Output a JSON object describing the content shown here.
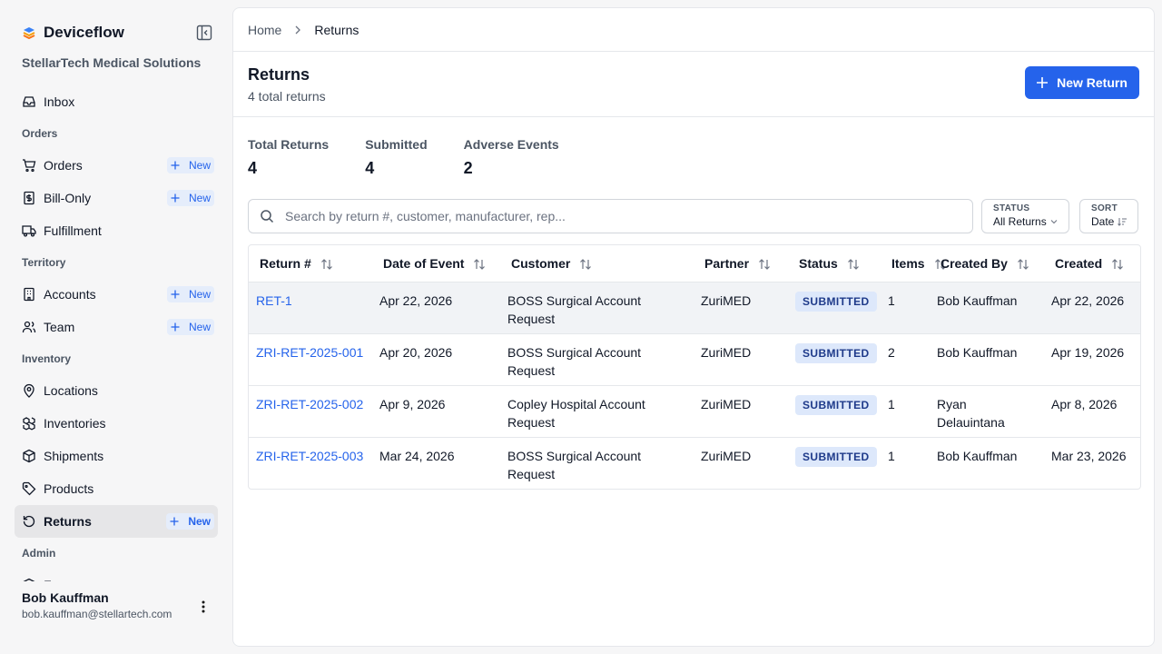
{
  "sidebar": {
    "brand": "Deviceflow",
    "org": "StellarTech Medical Solutions",
    "top": [
      {
        "label": "Inbox",
        "icon": "inbox"
      }
    ],
    "groups": [
      {
        "heading": "Orders",
        "items": [
          {
            "label": "Orders",
            "icon": "cart",
            "badge": "New"
          },
          {
            "label": "Bill-Only",
            "icon": "bill",
            "badge": "New"
          },
          {
            "label": "Fulfillment",
            "icon": "truck"
          }
        ]
      },
      {
        "heading": "Territory",
        "items": [
          {
            "label": "Accounts",
            "icon": "building",
            "badge": "New"
          },
          {
            "label": "Team",
            "icon": "team",
            "badge": "New"
          }
        ]
      },
      {
        "heading": "Inventory",
        "items": [
          {
            "label": "Locations",
            "icon": "pin"
          },
          {
            "label": "Inventories",
            "icon": "boxes"
          },
          {
            "label": "Shipments",
            "icon": "box"
          },
          {
            "label": "Products",
            "icon": "tag"
          },
          {
            "label": "Returns",
            "icon": "return",
            "badge": "New",
            "active": true
          }
        ]
      },
      {
        "heading": "Admin",
        "items": [
          {
            "label": "Forms",
            "icon": "box"
          }
        ]
      }
    ],
    "user": {
      "name": "Bob Kauffman",
      "email": "bob.kauffman@stellartech.com"
    }
  },
  "breadcrumb": [
    "Home",
    "Returns"
  ],
  "header": {
    "title": "Returns",
    "subtitle": "4 total returns",
    "button": "New Return"
  },
  "stats": [
    {
      "label": "Total Returns",
      "value": 4
    },
    {
      "label": "Submitted",
      "value": 4
    },
    {
      "label": "Adverse Events",
      "value": 2
    }
  ],
  "search": {
    "placeholder": "Search by return #, customer, manufacturer, rep..."
  },
  "filters": [
    {
      "label": "STATUS",
      "value": "All Returns"
    },
    {
      "label": "SORT",
      "value": "Date"
    }
  ],
  "table": {
    "columns": [
      "Return #",
      "Date of Event",
      "Customer",
      "Partner",
      "Status",
      "Items",
      "Created By",
      "Created"
    ],
    "rows": [
      [
        "RET-1",
        "Apr 22, 2026",
        "BOSS Surgical Account Request",
        "ZuriMED",
        "SUBMITTED",
        1,
        "Bob Kauffman",
        "Apr 22, 2026"
      ],
      [
        "ZRI-RET-2025-001",
        "Apr 20, 2026",
        "BOSS Surgical Account Request",
        "ZuriMED",
        "SUBMITTED",
        2,
        "Bob Kauffman",
        "Apr 19, 2026"
      ],
      [
        "ZRI-RET-2025-002",
        "Apr 9, 2026",
        "Copley Hospital Account Request",
        "ZuriMED",
        "SUBMITTED",
        1,
        "Ryan Delauintana",
        "Apr 8, 2026"
      ],
      [
        "ZRI-RET-2025-003",
        "Mar 24, 2026",
        "BOSS Surgical Account Request",
        "ZuriMED",
        "SUBMITTED",
        1,
        "Bob Kauffman",
        "Mar 23, 2026"
      ]
    ],
    "highlighted_row": 0
  }
}
